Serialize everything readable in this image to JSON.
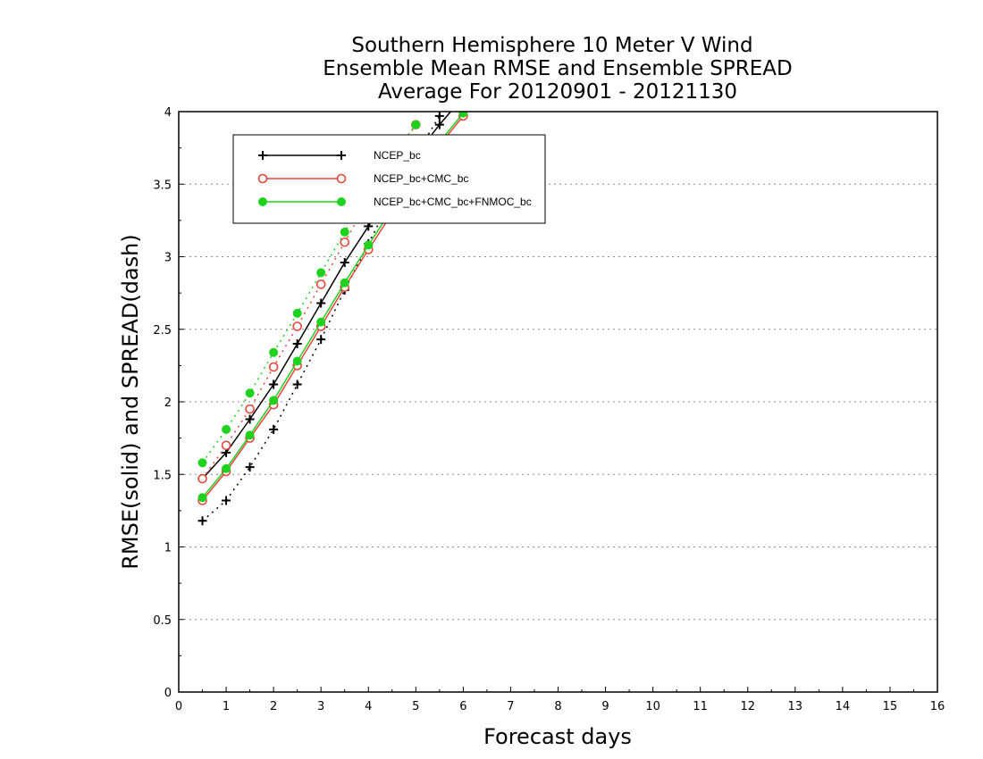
{
  "chart_data": {
    "type": "line",
    "title": [
      "Southern Hemisphere 10 Meter V Wind",
      "Ensemble Mean RMSE and Ensemble SPREAD",
      "Average For 20120901 - 20121130"
    ],
    "xlabel": "Forecast days",
    "ylabel": "RMSE(solid) and SPREAD(dash)",
    "xlim": [
      0,
      16
    ],
    "ylim": [
      0,
      4
    ],
    "x_ticks": [
      "0",
      "1",
      "2",
      "3",
      "4",
      "5",
      "6",
      "7",
      "8",
      "9",
      "10",
      "11",
      "12",
      "13",
      "14",
      "15",
      "16"
    ],
    "y_ticks": [
      "0",
      "0.5",
      "1",
      "1.5",
      "2",
      "2.5",
      "3",
      "3.5",
      "4"
    ],
    "grid": "horizontal dotted",
    "legend_position": "top-left",
    "series": [
      {
        "name": "NCEP_bc",
        "color": "#000000",
        "marker": "plus",
        "rmse": {
          "x": [
            0.5,
            1,
            1.5,
            2,
            2.5,
            3,
            3.5,
            4,
            4.5,
            5,
            5.5,
            6
          ],
          "y": [
            1.47,
            1.65,
            1.88,
            2.12,
            2.4,
            2.68,
            2.96,
            3.21,
            3.45,
            3.7,
            3.91,
            4.1
          ]
        },
        "spread": {
          "x": [
            0.5,
            1,
            1.5,
            2,
            2.5,
            3,
            3.5,
            4,
            4.5,
            5,
            5.5
          ],
          "y": [
            1.18,
            1.32,
            1.55,
            1.81,
            2.12,
            2.43,
            2.77,
            3.09,
            3.41,
            3.7,
            3.97
          ]
        }
      },
      {
        "name": "NCEP_bc+CMC_bc",
        "color": "#e8443a",
        "marker": "open-circle",
        "rmse": {
          "x": [
            0.5,
            1,
            1.5,
            2,
            2.5,
            3,
            3.5,
            4,
            4.5,
            5,
            5.5,
            6
          ],
          "y": [
            1.32,
            1.52,
            1.75,
            1.98,
            2.25,
            2.52,
            2.79,
            3.05,
            3.3,
            3.54,
            3.77,
            3.97
          ]
        },
        "spread": {
          "x": [
            0.5,
            1,
            1.5,
            2,
            2.5,
            3,
            3.5,
            4,
            4.5,
            5
          ],
          "y": [
            1.47,
            1.7,
            1.95,
            2.24,
            2.52,
            2.81,
            3.1,
            3.39,
            3.66,
            3.91
          ]
        }
      },
      {
        "name": "NCEP_bc+CMC_bc+FNMOC_bc",
        "color": "#1ed21e",
        "marker": "filled-circle",
        "rmse": {
          "x": [
            0.5,
            1,
            1.5,
            2,
            2.5,
            3,
            3.5,
            4,
            4.5,
            5,
            5.5,
            6
          ],
          "y": [
            1.34,
            1.54,
            1.77,
            2.01,
            2.28,
            2.55,
            2.82,
            3.08,
            3.33,
            3.57,
            3.79,
            3.99
          ]
        },
        "spread": {
          "x": [
            0.5,
            1,
            1.5,
            2,
            2.5,
            3,
            3.5,
            4,
            4.5,
            5
          ],
          "y": [
            1.58,
            1.81,
            2.06,
            2.34,
            2.61,
            2.89,
            3.17,
            3.44,
            3.69,
            3.91
          ]
        }
      }
    ]
  }
}
